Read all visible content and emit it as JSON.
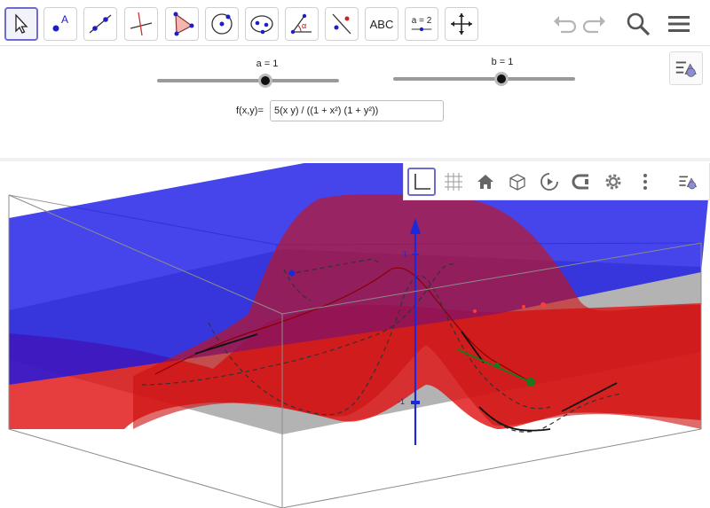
{
  "toolbar": {
    "tools": [
      {
        "name": "move-tool",
        "icon": "arrow-cursor-icon"
      },
      {
        "name": "point-tool",
        "icon": "point-icon",
        "text": "A"
      },
      {
        "name": "line-tool",
        "icon": "line-icon"
      },
      {
        "name": "perpendicular-tool",
        "icon": "perpendicular-line-icon"
      },
      {
        "name": "polygon-tool",
        "icon": "polygon-icon"
      },
      {
        "name": "circle-tool",
        "icon": "circle-center-icon"
      },
      {
        "name": "ellipse-tool",
        "icon": "ellipse-icon"
      },
      {
        "name": "angle-tool",
        "icon": "angle-icon",
        "text": "α"
      },
      {
        "name": "reflect-tool",
        "icon": "reflect-icon"
      },
      {
        "name": "text-tool",
        "text": "ABC"
      },
      {
        "name": "slider-tool",
        "text": "a = 2"
      },
      {
        "name": "move-graphics-tool",
        "icon": "move-arrows-icon"
      }
    ],
    "right": {
      "undo": "undo-icon",
      "redo": "redo-icon",
      "search": "search-icon",
      "menu": "hamburger-menu-icon"
    }
  },
  "sliders": [
    {
      "label": "a = 1",
      "value": 1
    },
    {
      "label": "b = 1",
      "value": 1
    }
  ],
  "function": {
    "label": "f(x,y)=",
    "value": "5(x y) / ((1 + x²) (1 + y²))"
  },
  "view3d": {
    "axis_labels": {
      "top": "1",
      "bottom": "-1"
    },
    "toolbar_icons": [
      "axes-icon",
      "grid-icon",
      "home-icon",
      "cube-view-icon",
      "rotate-icon",
      "projection-icon",
      "settings-icon",
      "more-vertical-icon",
      "style-bar-icon"
    ],
    "colors": {
      "plane_blue": "#1a1aee",
      "plane_gray": "#8c8c8c",
      "surface_red": "#ee1111",
      "axis_blue": "#1a2adb"
    }
  }
}
